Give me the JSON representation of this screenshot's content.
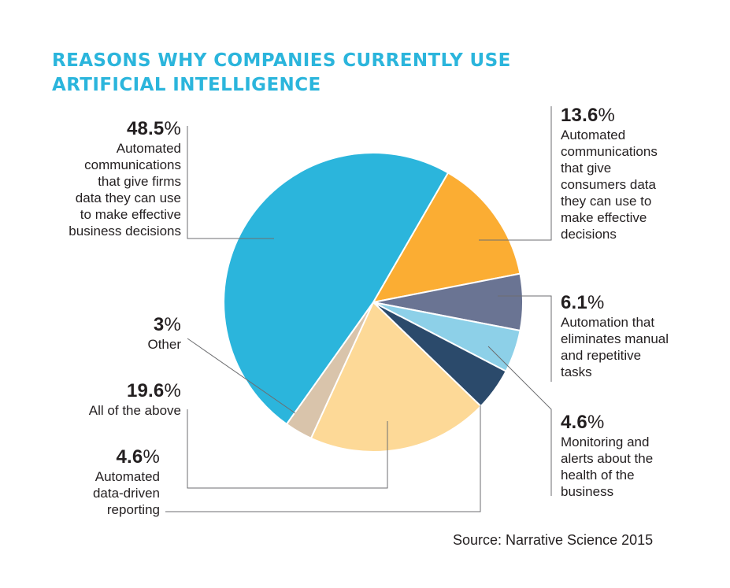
{
  "chart_data": {
    "type": "pie",
    "title": "REASONS WHY COMPANIES CURRENTLY USE ARTIFICIAL INTELLIGENCE",
    "title_lines": [
      "REASONS WHY COMPANIES CURRENTLY USE",
      "ARTIFICIAL INTELLIGENCE"
    ],
    "source": "Source: Narrative Science 2015",
    "start_angle_deg": 30,
    "direction": "clockwise",
    "slices": [
      {
        "value": 13.6,
        "pct": "13.6",
        "desc": "Automated\ncommunications\nthat give\nconsumers data\nthey can use to\nmake effective\ndecisions",
        "color": "#fbad33"
      },
      {
        "value": 6.1,
        "pct": "6.1",
        "desc": "Automation that\neliminates manual\nand repetitive\ntasks",
        "color": "#6a7493"
      },
      {
        "value": 4.6,
        "pct": "4.6",
        "desc": "Monitoring and\nalerts about the\nhealth of the\nbusiness",
        "color": "#8dd0e8"
      },
      {
        "value": 4.6,
        "pct": "4.6",
        "desc": "Automated\ndata-driven\nreporting",
        "color": "#2b4a6b"
      },
      {
        "value": 19.6,
        "pct": "19.6",
        "desc": "All of the above",
        "color": "#fdd997"
      },
      {
        "value": 3,
        "pct": "3",
        "desc": "Other",
        "color": "#d9c4ab"
      },
      {
        "value": 48.5,
        "pct": "48.5",
        "desc": "Automated\ncommunications\nthat give firms\ndata they can use\nto make effective\nbusiness decisions",
        "color": "#2bb5dc"
      }
    ]
  }
}
